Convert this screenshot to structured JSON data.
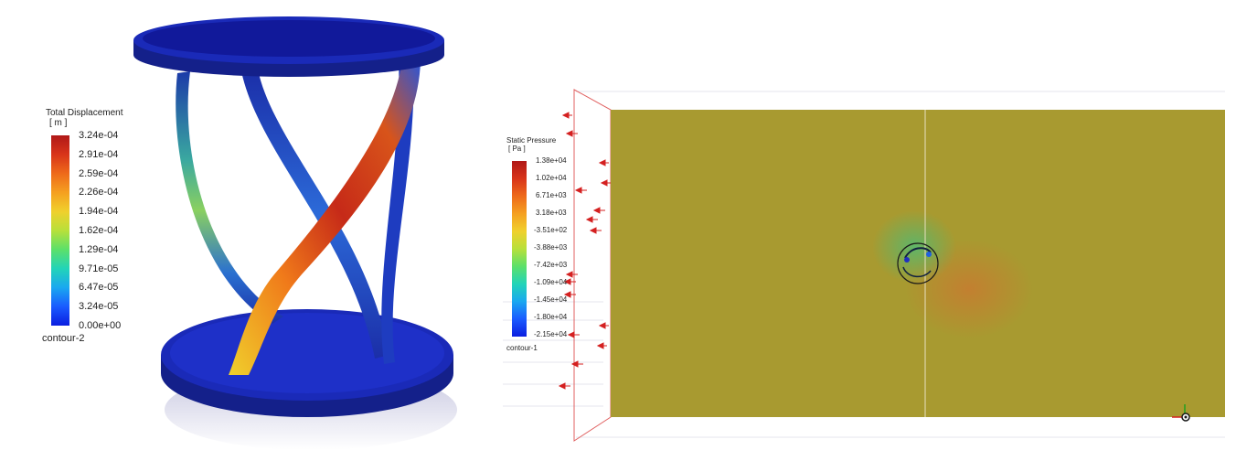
{
  "left_view": {
    "legend": {
      "title": "Total Displacement",
      "unit": "[ m ]",
      "ticks": [
        "3.24e-04",
        "2.91e-04",
        "2.59e-04",
        "2.26e-04",
        "1.94e-04",
        "1.62e-04",
        "1.29e-04",
        "9.71e-05",
        "6.47e-05",
        "3.24e-05",
        "0.00e+00"
      ],
      "contour_name": "contour-2"
    }
  },
  "right_view": {
    "legend": {
      "title": "Static Pressure",
      "unit": "[ Pa ]",
      "ticks": [
        "1.38e+04",
        "1.02e+04",
        "6.71e+03",
        "3.18e+03",
        "-3.51e+02",
        "-3.88e+03",
        "-7.42e+03",
        "-1.09e+04",
        "-1.45e+04",
        "-1.80e+04",
        "-2.15e+04"
      ],
      "contour_name": "contour-1"
    }
  },
  "colors": {
    "colormap": [
      "#0b1ee0",
      "#1a5bff",
      "#1aa8f0",
      "#22d4b8",
      "#5ce06a",
      "#b8e03a",
      "#f0d02c",
      "#f5a020",
      "#ee6a1a",
      "#d8341a",
      "#b01818"
    ],
    "domain_field": "#a89a30",
    "velocity_arrow": "#d42020"
  }
}
